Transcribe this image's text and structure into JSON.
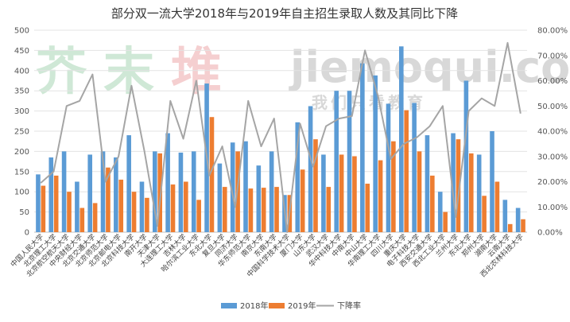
{
  "watermark": {
    "cn": [
      "芥",
      "末",
      "堆"
    ],
    "latin": "jiemoqui.com",
    "slogan": "我们只看教育"
  },
  "chart_data": {
    "type": "bar",
    "title": "部分双一流大学2018年与2019年自主招生录取人数及其同比下降",
    "categories": [
      "中国人民大学",
      "北京理工大学",
      "北京航空航天大学",
      "中央财经大学",
      "北京交通大学",
      "北京师范大学",
      "北京邮电大学",
      "北京科技大学",
      "南开大学",
      "天津大学",
      "大连理工大学",
      "吉林大学",
      "哈尔滨工业大学",
      "东北大学",
      "复旦大学",
      "同济大学",
      "华东师范大学",
      "南京大学",
      "东南大学",
      "中国科学技术大学",
      "厦门大学",
      "山东大学",
      "武汉大学",
      "华中科技大学",
      "中南大学",
      "中山大学",
      "华南理工大学",
      "四川大学",
      "重庆大学",
      "电子科技大学",
      "西安交通大学",
      "西北工业大学",
      "兰州大学",
      "东北大学",
      "郑州大学",
      "湖南大学",
      "云南大学",
      "西北农林科技大学"
    ],
    "series": [
      {
        "name": "2018年",
        "axis": "left",
        "color": "#5b9bd5",
        "values": [
          143,
          185,
          200,
          125,
          192,
          200,
          185,
          240,
          125,
          200,
          245,
          197,
          200,
          368,
          170,
          222,
          225,
          165,
          200,
          92,
          272,
          312,
          192,
          350,
          350,
          418,
          388,
          318,
          460,
          320,
          240,
          100,
          245,
          375,
          192,
          250,
          80,
          60
        ]
      },
      {
        "name": "2019年",
        "axis": "left",
        "color": "#ed7d31",
        "values": [
          115,
          140,
          100,
          60,
          72,
          160,
          130,
          100,
          85,
          195,
          118,
          125,
          80,
          285,
          112,
          200,
          108,
          110,
          112,
          92,
          155,
          230,
          112,
          192,
          188,
          120,
          178,
          225,
          302,
          200,
          140,
          50,
          230,
          195,
          90,
          125,
          20,
          32
        ]
      },
      {
        "name": "下降率",
        "axis": "right",
        "type": "line",
        "color": "#a5a5a5",
        "values": [
          19.5,
          24,
          50,
          52,
          62.5,
          20,
          30,
          58,
          32,
          2.5,
          52,
          37,
          60,
          22.5,
          34,
          10,
          52,
          34,
          45,
          0,
          43,
          26,
          42,
          45,
          46,
          72,
          54,
          29,
          35,
          37.5,
          42,
          50,
          6,
          48,
          53,
          50,
          75,
          47
        ]
      }
    ],
    "ylim": [
      0,
      500
    ],
    "yticks": [
      "0",
      "50",
      "100",
      "150",
      "200",
      "250",
      "300",
      "350",
      "400",
      "450",
      "500"
    ],
    "y2lim": [
      0,
      80
    ],
    "y2ticks": [
      "0.00%",
      "10.00%",
      "20.00%",
      "30.00%",
      "40.00%",
      "50.00%",
      "60.00%",
      "70.00%",
      "80.00%"
    ],
    "grid": true,
    "legend_position": "bottom"
  }
}
